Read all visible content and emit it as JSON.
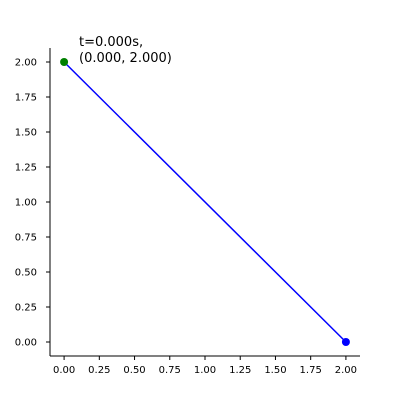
{
  "chart_data": {
    "type": "line",
    "title": "",
    "xlabel": "",
    "ylabel": "",
    "xlim": [
      -0.1,
      2.1
    ],
    "ylim": [
      -0.1,
      2.1
    ],
    "x_ticks": [
      0.0,
      0.25,
      0.5,
      0.75,
      1.0,
      1.25,
      1.5,
      1.75,
      2.0
    ],
    "x_tick_labels": [
      "0.00",
      "0.25",
      "0.50",
      "0.75",
      "1.00",
      "1.25",
      "1.50",
      "1.75",
      "2.00"
    ],
    "y_ticks": [
      0.0,
      0.25,
      0.5,
      0.75,
      1.0,
      1.25,
      1.5,
      1.75,
      2.0
    ],
    "y_tick_labels": [
      "0.00",
      "0.25",
      "0.50",
      "0.75",
      "1.00",
      "1.25",
      "1.50",
      "1.75",
      "2.00"
    ],
    "grid": false,
    "spines": [
      "left",
      "bottom"
    ],
    "series": [
      {
        "color": "#0000ff",
        "x": [
          0.0,
          2.0
        ],
        "y": [
          2.0,
          0.0
        ]
      }
    ],
    "points": [
      {
        "x": 2.0,
        "y": 0.0,
        "color": "#0000ff"
      },
      {
        "x": 0.0,
        "y": 2.0,
        "color": "#008000"
      }
    ],
    "annotation": {
      "lines": [
        "t=0.000s,",
        "(0.000, 2.000)"
      ]
    }
  }
}
